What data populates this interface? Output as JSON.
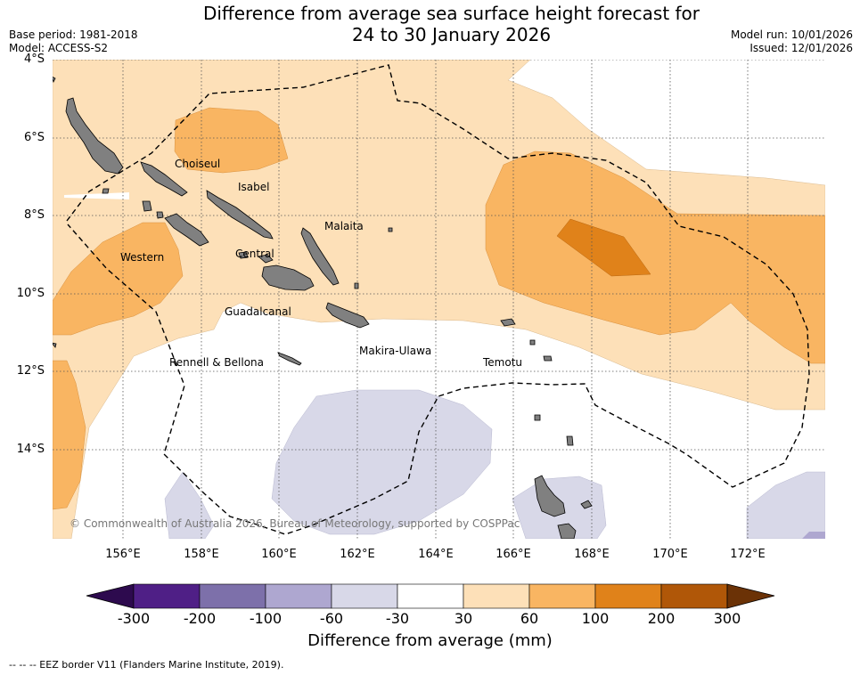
{
  "title": {
    "line1": "Difference from average sea surface height forecast for",
    "line2": "24 to 30 January 2026"
  },
  "meta": {
    "base_period": "Base period: 1981-2018",
    "model": "Model: ACCESS-S2",
    "model_run": "Model run: 10/01/2026",
    "issued": "Issued: 12/01/2026"
  },
  "axes": {
    "lat_labels": [
      "4°S",
      "6°S",
      "8°S",
      "10°S",
      "12°S",
      "14°S"
    ],
    "lon_labels": [
      "156°E",
      "158°E",
      "160°E",
      "162°E",
      "164°E",
      "166°E",
      "168°E",
      "170°E",
      "172°E"
    ]
  },
  "regions": [
    "Choiseul",
    "Isabel",
    "Malaita",
    "Western",
    "Central",
    "Guadalcanal",
    "Rennell & Bellona",
    "Makira-Ulawa",
    "Temotu"
  ],
  "copyright": "© Commonwealth of Australia 2026, Bureau of Meteorology, supported by COSPPac",
  "colorbar": {
    "title": "Difference from average (mm)",
    "ticks": [
      "-300",
      "-200",
      "-100",
      "-60",
      "-30",
      "30",
      "60",
      "100",
      "200",
      "300"
    ],
    "colors": {
      "under": "#2d0a4e",
      "bins": [
        "#4f1f86",
        "#7d70aa",
        "#aea7d0",
        "#d8d8e8",
        "#ffffff",
        "#fde0b8",
        "#f9b562",
        "#e0821a",
        "#b05708"
      ],
      "over": "#6b3206"
    }
  },
  "footer": "--  --  -- EEZ border V11 (Flanders Marine Institute, 2019)."
}
